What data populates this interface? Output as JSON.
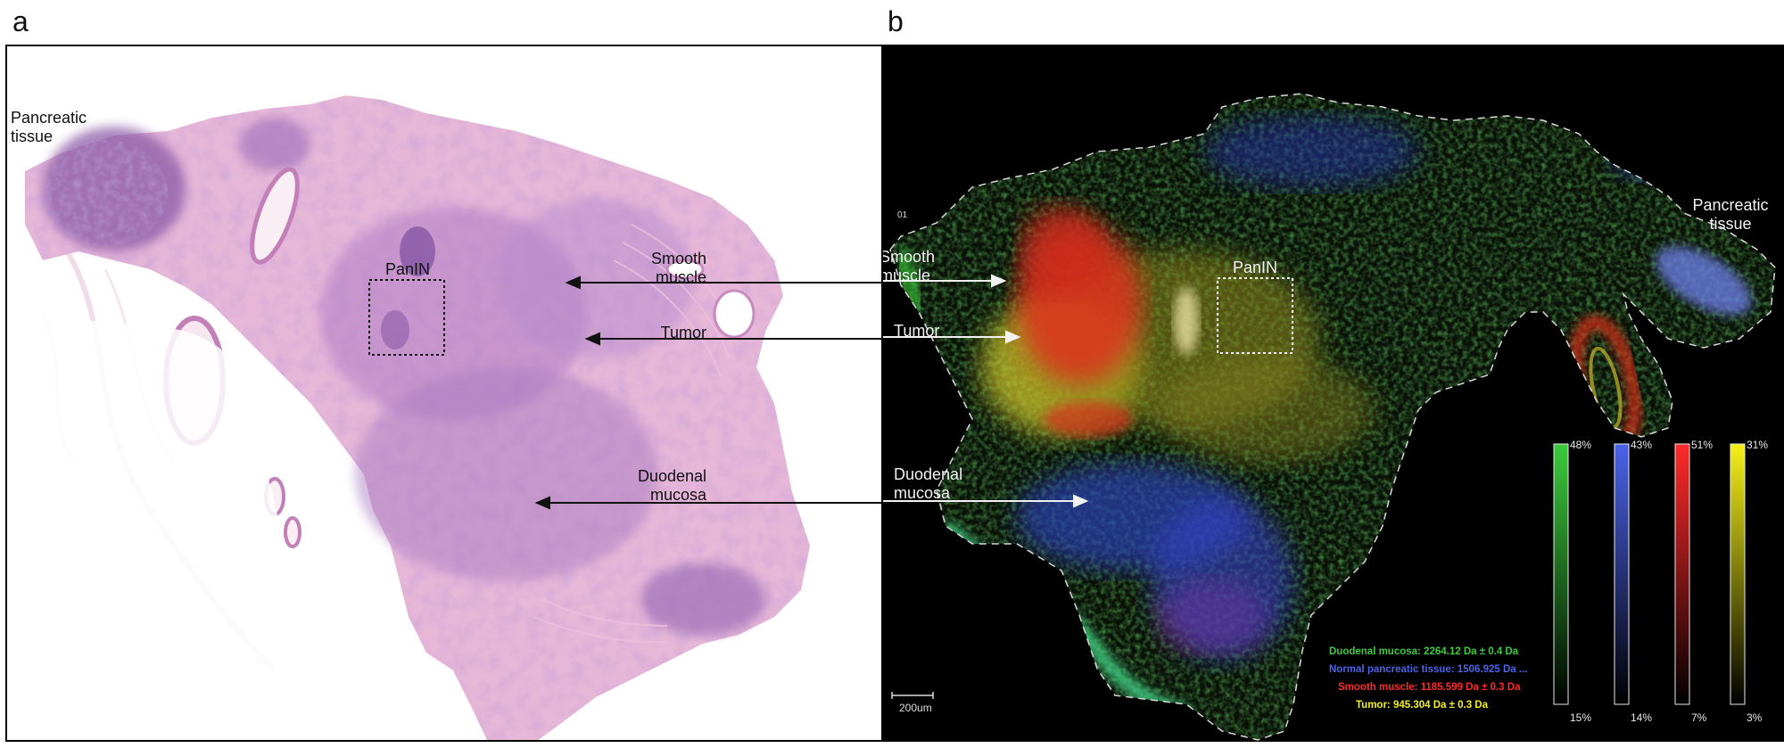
{
  "panels": {
    "a": {
      "letter": "a"
    },
    "b": {
      "letter": "b"
    }
  },
  "labels_a": {
    "pancreatic": "Pancreatic\ntissue",
    "panin": "PanIN",
    "smooth_muscle": "Smooth\nmuscle",
    "tumor": "Tumor",
    "duodenal": "Duodenal\nmucosa"
  },
  "labels_b": {
    "pancreatic": "Pancreatic\ntissue",
    "panin": "PanIN",
    "smooth_muscle": "Smooth\nmuscle",
    "tumor": "Tumor",
    "duodenal": "Duodenal\nmucosa",
    "edge_mark": "01"
  },
  "legend": [
    {
      "text": "Duodenal mucosa: 2264.12 Da ± 0.4 Da",
      "color": "#3ccc3c"
    },
    {
      "text": "Normal  pancreatic tissue: 1506.925 Da ...",
      "color": "#4a63e8"
    },
    {
      "text": "Smooth muscle: 1185.599 Da ± 0.3 Da",
      "color": "#ff2a2a"
    },
    {
      "text": "Tumor: 945.304 Da ± 0.3 Da",
      "color": "#f5f019"
    }
  ],
  "colorbars": [
    {
      "max": "48%",
      "min": "15%",
      "color": "#3ccc3c"
    },
    {
      "max": "43%",
      "min": "14%",
      "color": "#4a63e8"
    },
    {
      "max": "51%",
      "min": "7%",
      "color": "#ff2a2a"
    },
    {
      "max": "31%",
      "min": "3%",
      "color": "#f5f019"
    }
  ],
  "scale_bar": {
    "label": "200um"
  }
}
